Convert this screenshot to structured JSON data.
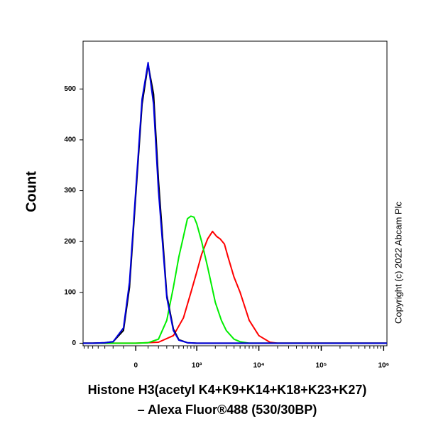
{
  "chart_data": {
    "type": "line",
    "y_label": "Count",
    "x_label": [
      "Histone H3(acetyl K4+K9+K14+K18+K23+K27)",
      "– Alexa Fluor®488 (530/30BP)"
    ],
    "copyright": "Copyright (c) 2022 Abcam Plc",
    "xscale": "biexponential",
    "xlim": [
      -730,
      1130000
    ],
    "ylim": [
      -5,
      594
    ],
    "xticks": [
      0,
      {
        "value": 1000,
        "label": "10³"
      },
      {
        "value": 10000,
        "label": "10⁴"
      },
      {
        "value": 100000,
        "label": "10⁵"
      },
      {
        "value": 1000000,
        "label": "10⁶"
      }
    ],
    "xminorticks": [
      -700,
      -600,
      -500,
      -400,
      -300,
      -200,
      -100,
      100,
      200,
      300,
      400,
      500,
      600,
      700,
      800,
      900,
      2000,
      3000,
      4000,
      5000,
      6000,
      7000,
      8000,
      9000,
      20000,
      30000,
      40000,
      50000,
      60000,
      70000,
      80000,
      90000,
      200000,
      300000,
      400000,
      500000,
      600000,
      700000,
      800000,
      900000
    ],
    "yticks": [
      0,
      100,
      200,
      300,
      400,
      500
    ],
    "series": [
      {
        "color": "#ff0000",
        "x": [
          -730,
          0,
          200,
          400,
          600,
          800,
          1000,
          1200,
          1500,
          1800,
          2100,
          2400,
          2800,
          3200,
          4000,
          5000,
          7000,
          10000,
          15000,
          20000,
          100000,
          1130000
        ],
        "values": [
          0,
          0,
          2,
          15,
          50,
          100,
          140,
          175,
          205,
          220,
          210,
          205,
          195,
          170,
          130,
          100,
          45,
          15,
          2,
          0,
          0,
          0
        ]
      },
      {
        "color": "#00ee00",
        "x": [
          -730,
          0,
          100,
          200,
          300,
          400,
          500,
          600,
          700,
          800,
          900,
          1000,
          1200,
          1500,
          2000,
          2500,
          3000,
          4000,
          5000,
          7000,
          100000,
          1130000
        ],
        "values": [
          0,
          0,
          1,
          8,
          45,
          110,
          170,
          210,
          245,
          250,
          248,
          235,
          200,
          150,
          80,
          45,
          25,
          8,
          3,
          0,
          0,
          0
        ]
      },
      {
        "color": "#000000",
        "x": [
          -730,
          -500,
          -300,
          -200,
          -100,
          -50,
          0,
          50,
          100,
          150,
          200,
          300,
          400,
          500,
          700,
          1000,
          10000,
          100000,
          1130000
        ],
        "values": [
          0,
          0,
          1,
          3,
          25,
          110,
          290,
          470,
          548,
          490,
          320,
          95,
          28,
          7,
          1,
          0,
          0,
          0,
          0
        ]
      },
      {
        "color": "#0000dd",
        "x": [
          -730,
          -500,
          -300,
          -200,
          -100,
          -50,
          0,
          50,
          100,
          150,
          200,
          300,
          400,
          500,
          700,
          1000,
          10000,
          100000,
          1130000
        ],
        "values": [
          0,
          0,
          1,
          3,
          30,
          120,
          300,
          480,
          552,
          470,
          300,
          90,
          25,
          6,
          1,
          0,
          0,
          0,
          0
        ]
      }
    ]
  }
}
